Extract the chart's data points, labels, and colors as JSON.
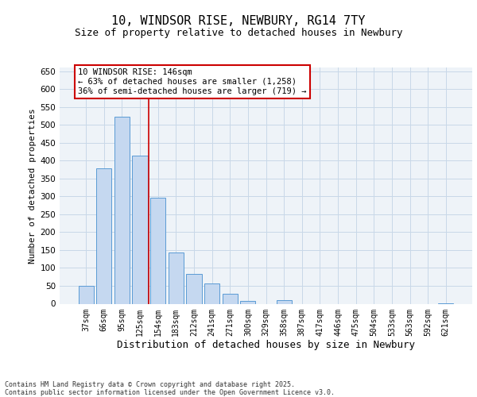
{
  "title": "10, WINDSOR RISE, NEWBURY, RG14 7TY",
  "subtitle": "Size of property relative to detached houses in Newbury",
  "xlabel": "Distribution of detached houses by size in Newbury",
  "ylabel": "Number of detached properties",
  "categories": [
    "37sqm",
    "66sqm",
    "95sqm",
    "125sqm",
    "154sqm",
    "183sqm",
    "212sqm",
    "241sqm",
    "271sqm",
    "300sqm",
    "329sqm",
    "358sqm",
    "387sqm",
    "417sqm",
    "446sqm",
    "475sqm",
    "504sqm",
    "533sqm",
    "563sqm",
    "592sqm",
    "621sqm"
  ],
  "values": [
    50,
    378,
    522,
    414,
    297,
    143,
    84,
    56,
    28,
    8,
    0,
    11,
    0,
    0,
    0,
    0,
    0,
    0,
    0,
    0,
    2
  ],
  "bar_color": "#c5d8f0",
  "bar_edge_color": "#5b9bd5",
  "grid_color": "#c8d8e8",
  "background_color": "#eef3f8",
  "annotation_text": "10 WINDSOR RISE: 146sqm\n← 63% of detached houses are smaller (1,258)\n36% of semi-detached houses are larger (719) →",
  "vline_x": 3.5,
  "vline_color": "#cc0000",
  "ylim": [
    0,
    660
  ],
  "yticks": [
    0,
    50,
    100,
    150,
    200,
    250,
    300,
    350,
    400,
    450,
    500,
    550,
    600,
    650
  ],
  "footer": "Contains HM Land Registry data © Crown copyright and database right 2025.\nContains public sector information licensed under the Open Government Licence v3.0.",
  "title_fontsize": 11,
  "subtitle_fontsize": 9,
  "axis_label_fontsize": 8,
  "tick_fontsize": 7,
  "annotation_fontsize": 7.5,
  "footer_fontsize": 6
}
